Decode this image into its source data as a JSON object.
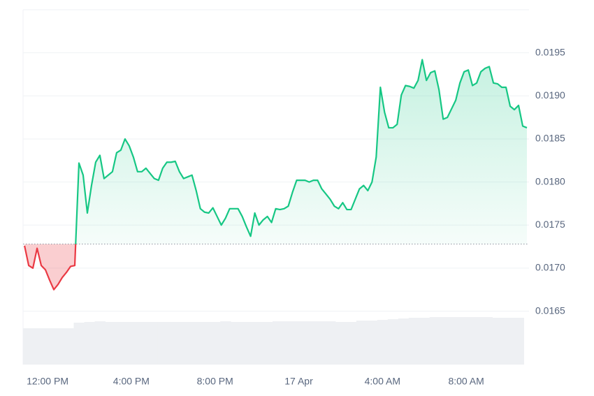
{
  "chart_data": {
    "type": "line",
    "x": [
      -1.1,
      -0.9,
      -0.7,
      -0.5,
      -0.3,
      -0.1,
      0.1,
      0.3,
      0.5,
      0.7,
      0.9,
      1.1,
      1.3,
      1.5,
      1.7,
      1.9,
      2.1,
      2.3,
      2.5,
      2.7,
      2.9,
      3.1,
      3.3,
      3.5,
      3.7,
      3.9,
      4.1,
      4.3,
      4.5,
      4.7,
      4.9,
      5.1,
      5.3,
      5.5,
      5.7,
      5.9,
      6.1,
      6.3,
      6.5,
      6.7,
      6.9,
      7.1,
      7.3,
      7.5,
      7.7,
      7.9,
      8.1,
      8.3,
      8.5,
      8.7,
      8.9,
      9.1,
      9.3,
      9.5,
      9.7,
      9.9,
      10.1,
      10.3,
      10.5,
      10.7,
      10.9,
      11.1,
      11.3,
      11.5,
      11.7,
      11.9,
      12.1,
      12.3,
      12.5,
      12.7,
      12.9,
      13.1,
      13.3,
      13.5,
      13.7,
      13.9,
      14.1,
      14.3,
      14.5,
      14.7,
      14.9,
      15.1,
      15.3,
      15.5,
      15.7,
      15.9,
      16.1,
      16.3,
      16.5,
      16.7,
      16.9,
      17.1,
      17.3,
      17.5,
      17.7,
      17.9,
      18.1,
      18.3,
      18.5,
      18.7,
      18.9,
      19.1,
      19.3,
      19.5,
      19.7,
      19.9,
      20.1,
      20.3,
      20.5,
      20.7,
      20.9,
      21.1,
      21.3,
      21.5,
      21.7,
      21.9,
      22.1,
      22.3,
      22.5,
      22.7,
      22.9
    ],
    "values": [
      0.01726,
      0.01703,
      0.017,
      0.01723,
      0.01703,
      0.01698,
      0.01686,
      0.01675,
      0.01681,
      0.01689,
      0.01695,
      0.01702,
      0.01703,
      0.01822,
      0.01808,
      0.01764,
      0.01796,
      0.01823,
      0.01831,
      0.01804,
      0.01808,
      0.01812,
      0.01834,
      0.01837,
      0.0185,
      0.01842,
      0.01829,
      0.01812,
      0.01812,
      0.01816,
      0.0181,
      0.01804,
      0.01802,
      0.01816,
      0.01823,
      0.01823,
      0.01824,
      0.01812,
      0.01804,
      0.01806,
      0.01808,
      0.0179,
      0.01769,
      0.01765,
      0.01764,
      0.0177,
      0.0176,
      0.0175,
      0.01758,
      0.01769,
      0.01769,
      0.01769,
      0.0176,
      0.01748,
      0.01737,
      0.01764,
      0.0175,
      0.01756,
      0.0176,
      0.01753,
      0.01769,
      0.01768,
      0.01769,
      0.01772,
      0.01788,
      0.01802,
      0.01802,
      0.01802,
      0.018,
      0.01802,
      0.01802,
      0.01792,
      0.01786,
      0.0178,
      0.01772,
      0.01769,
      0.01776,
      0.01768,
      0.01768,
      0.0178,
      0.01792,
      0.01796,
      0.0179,
      0.018,
      0.01829,
      0.0191,
      0.01881,
      0.01863,
      0.01863,
      0.01867,
      0.01901,
      0.01912,
      0.01911,
      0.01909,
      0.01918,
      0.01942,
      0.01918,
      0.01927,
      0.01929,
      0.01907,
      0.01873,
      0.01875,
      0.01885,
      0.01895,
      0.01915,
      0.01928,
      0.0193,
      0.01912,
      0.01915,
      0.01928,
      0.01932,
      0.01934,
      0.01915,
      0.01914,
      0.0191,
      0.0191,
      0.01888,
      0.01884,
      0.01889,
      0.01865,
      0.01863
    ],
    "baseline": 0.01728,
    "up_color": "#16c784",
    "down_color": "#ea3943",
    "xlim": [
      -1.17,
      23
    ],
    "xticks": [
      {
        "value": 0,
        "label": "12:00 PM"
      },
      {
        "value": 4,
        "label": "4:00 PM"
      },
      {
        "value": 8,
        "label": "8:00 PM"
      },
      {
        "value": 12,
        "label": "17 Apr"
      },
      {
        "value": 16,
        "label": "4:00 AM"
      },
      {
        "value": 20,
        "label": "8:00 AM"
      }
    ],
    "ylim": [
      0.01588,
      0.02
    ],
    "yticks": [
      0.0165,
      {
        "value": 0.017,
        "label": "0.0170"
      },
      0.0175,
      {
        "value": 0.018,
        "label": "0.0180"
      },
      0.0185,
      {
        "value": 0.019,
        "label": "0.0190"
      },
      0.0195
    ],
    "grid": true,
    "volume": {
      "x": [
        -1,
        -0.5,
        0,
        0.5,
        1,
        1.5,
        2,
        2.5,
        3,
        3.5,
        4,
        4.5,
        5,
        5.5,
        6,
        6.5,
        7,
        7.5,
        8,
        8.5,
        9,
        9.5,
        10,
        10.5,
        11,
        11.5,
        12,
        12.5,
        13,
        13.5,
        14,
        14.5,
        15,
        15.5,
        16,
        16.5,
        17,
        17.5,
        18,
        18.5,
        19,
        19.5,
        20,
        20.5,
        21,
        21.5,
        22,
        22.5
      ],
      "values": [
        52,
        52,
        52,
        52,
        52,
        60,
        61,
        62,
        61,
        61,
        61,
        61,
        61,
        61,
        61,
        61,
        61,
        61,
        61,
        62,
        61,
        61,
        61,
        61,
        62,
        62,
        62,
        62,
        62,
        62,
        61,
        61,
        63,
        63,
        64,
        65,
        66,
        67,
        67,
        68,
        68,
        68,
        68,
        68,
        68,
        67,
        67,
        67
      ],
      "ylim": [
        0,
        100
      ],
      "color": "#eef0f3"
    }
  }
}
